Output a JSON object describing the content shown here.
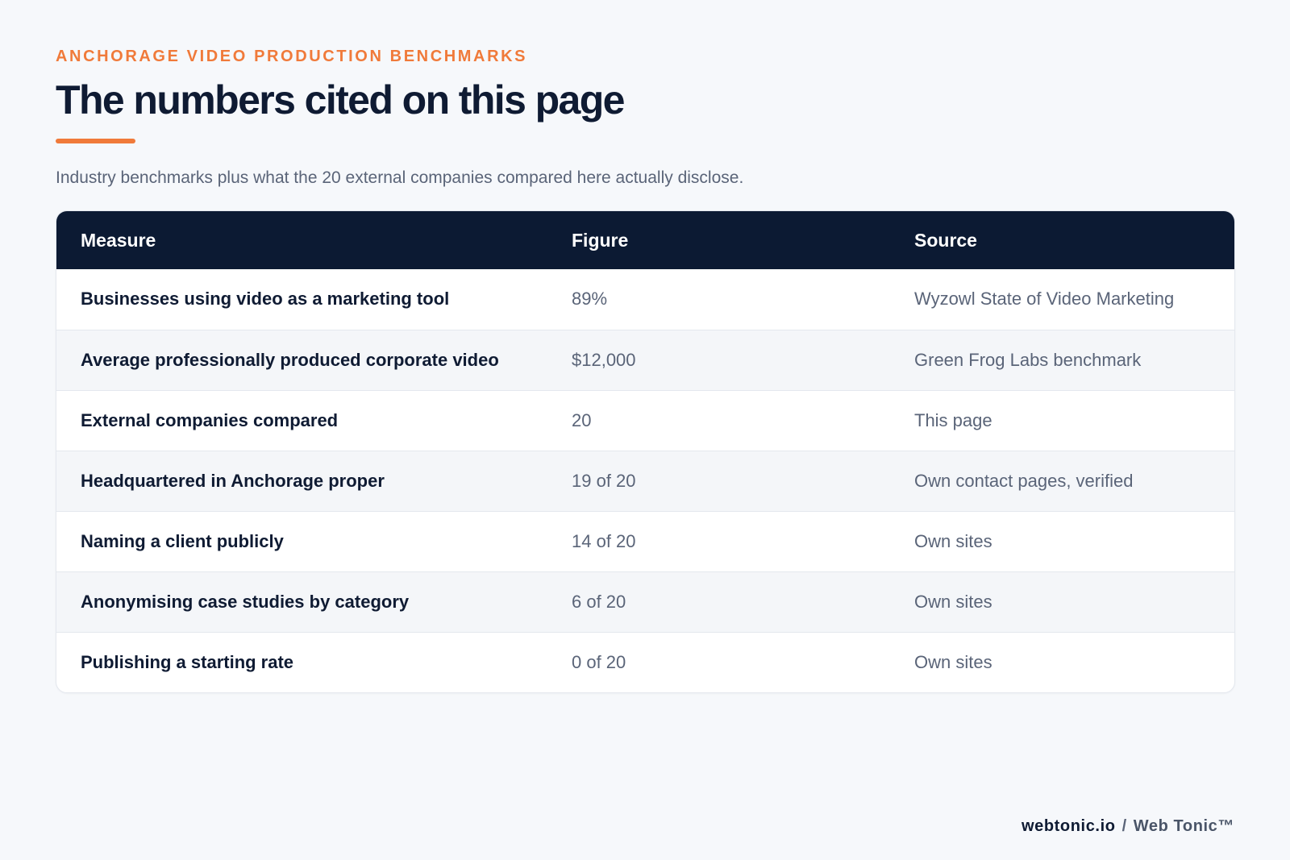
{
  "header": {
    "eyebrow": "ANCHORAGE VIDEO PRODUCTION BENCHMARKS",
    "title": "The numbers cited on this page",
    "subtitle": "Industry benchmarks plus what the 20 external companies compared here actually disclose."
  },
  "table": {
    "columns": [
      "Measure",
      "Figure",
      "Source"
    ],
    "rows": [
      {
        "measure": "Businesses using video as a marketing tool",
        "figure": "89%",
        "source": "Wyzowl State of Video Marketing"
      },
      {
        "measure": "Average professionally produced corporate video",
        "figure": "$12,000",
        "source": "Green Frog Labs benchmark"
      },
      {
        "measure": "External companies compared",
        "figure": "20",
        "source": "This page"
      },
      {
        "measure": "Headquartered in Anchorage proper",
        "figure": "19 of 20",
        "source": "Own contact pages, verified"
      },
      {
        "measure": "Naming a client publicly",
        "figure": "14 of 20",
        "source": "Own sites"
      },
      {
        "measure": "Anonymising case studies by category",
        "figure": "6 of 20",
        "source": "Own sites"
      },
      {
        "measure": "Publishing a starting rate",
        "figure": "0 of 20",
        "source": "Own sites"
      }
    ]
  },
  "footer": {
    "domain": "webtonic.io",
    "separator": "/",
    "brand": "Web Tonic™"
  },
  "colors": {
    "accent": "#f07a3a",
    "header_bg": "#0c1a33",
    "page_bg": "#f6f8fb"
  }
}
